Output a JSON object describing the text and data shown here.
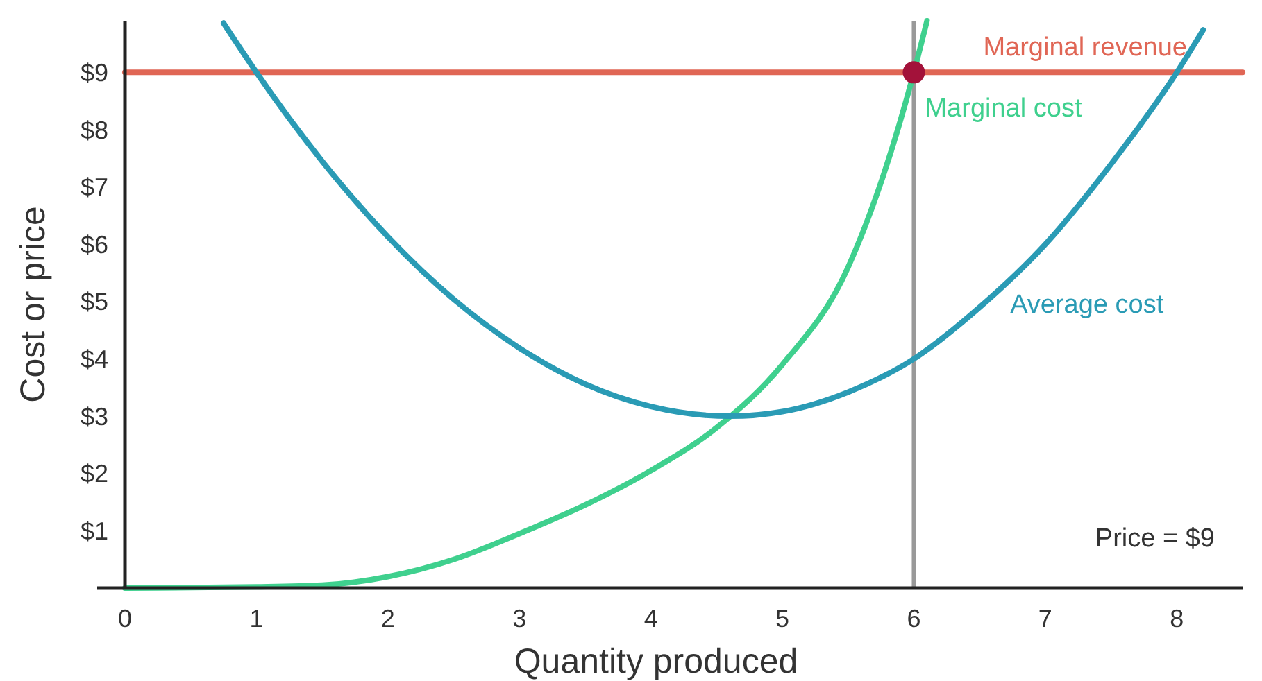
{
  "chart_data": {
    "type": "line",
    "xlabel": "Quantity produced",
    "ylabel": "Cost or price",
    "xlim": [
      0,
      8.5
    ],
    "ylim": [
      0,
      9.9
    ],
    "xticks": [
      0,
      1,
      2,
      3,
      4,
      5,
      6,
      7,
      8
    ],
    "yticks": [
      {
        "value": 1,
        "label": "$1"
      },
      {
        "value": 2,
        "label": "$2"
      },
      {
        "value": 3,
        "label": "$3"
      },
      {
        "value": 4,
        "label": "$4"
      },
      {
        "value": 5,
        "label": "$5"
      },
      {
        "value": 6,
        "label": "$6"
      },
      {
        "value": 7,
        "label": "$7"
      },
      {
        "value": 8,
        "label": "$8"
      },
      {
        "value": 9,
        "label": "$9"
      }
    ],
    "grid": false,
    "marker": "none",
    "line_style": "solid",
    "series": [
      {
        "name": "Marginal revenue",
        "color": "#e06655",
        "x": [
          0,
          8.5
        ],
        "values": [
          9,
          9
        ]
      },
      {
        "name": "Marginal cost",
        "color": "#3fd08e",
        "x": [
          0,
          1,
          1.5,
          2,
          2.5,
          3,
          3.5,
          4,
          4.5,
          5,
          5.5,
          6,
          6.1
        ],
        "values": [
          0,
          0.02,
          0.05,
          0.2,
          0.5,
          0.95,
          1.45,
          2.05,
          2.8,
          3.9,
          5.6,
          9,
          9.9
        ]
      },
      {
        "name": "Average cost",
        "color": "#2a9bb5",
        "x": [
          0.75,
          1,
          1.5,
          2,
          2.5,
          3,
          3.5,
          4,
          4.6,
          5,
          5.5,
          6,
          6.5,
          7,
          7.5,
          8,
          8.2
        ],
        "values": [
          9.86,
          9,
          7.45,
          6.13,
          5.04,
          4.19,
          3.56,
          3.17,
          3,
          3.08,
          3.42,
          4,
          4.9,
          6,
          7.4,
          9,
          9.74
        ]
      },
      {
        "type": "scatter",
        "color": "#a3123a",
        "x": [
          6
        ],
        "values": [
          9
        ],
        "marker": "circle"
      }
    ],
    "ref_lines": [
      {
        "axis": "x",
        "value": 6,
        "color": "#999999"
      }
    ],
    "annotations": [
      "Price = $9"
    ]
  }
}
